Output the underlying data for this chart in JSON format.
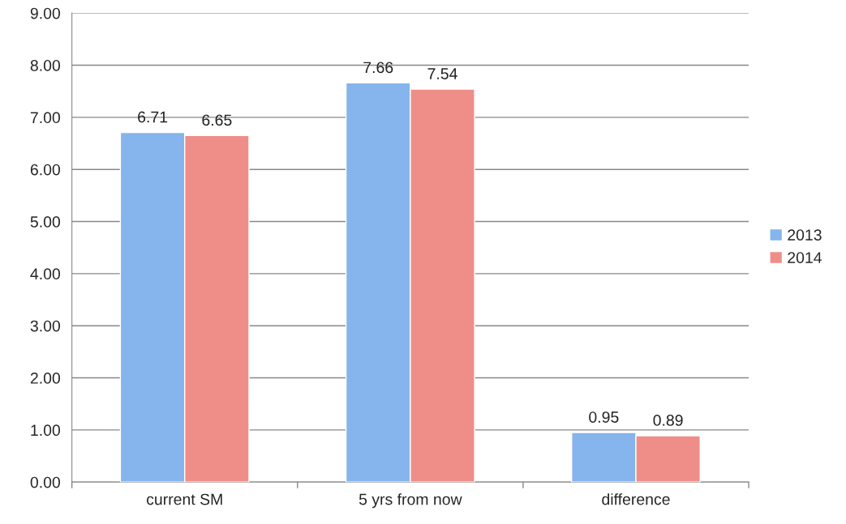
{
  "chart_data": {
    "type": "bar",
    "categories": [
      "current SM",
      "5 yrs from now",
      "difference"
    ],
    "series": [
      {
        "name": "2013",
        "color": "#86b4ec",
        "values": [
          6.71,
          7.66,
          0.95
        ]
      },
      {
        "name": "2014",
        "color": "#ef8e88",
        "values": [
          6.65,
          7.54,
          0.89
        ]
      }
    ],
    "ylim": [
      0,
      9
    ],
    "yticks": [
      {
        "value": 0,
        "label": "0.00"
      },
      {
        "value": 1,
        "label": "1.00"
      },
      {
        "value": 2,
        "label": "2.00"
      },
      {
        "value": 3,
        "label": "3.00"
      },
      {
        "value": 4,
        "label": "4.00"
      },
      {
        "value": 5,
        "label": "5.00"
      },
      {
        "value": 6,
        "label": "6.00"
      },
      {
        "value": 7,
        "label": "7.00"
      },
      {
        "value": 8,
        "label": "8.00"
      },
      {
        "value": 9,
        "label": "9.00"
      }
    ],
    "grid": "y",
    "legend": "right",
    "data_labels": true
  }
}
